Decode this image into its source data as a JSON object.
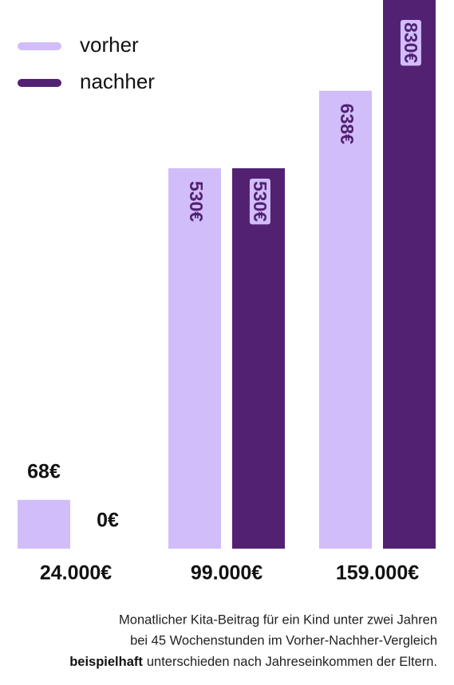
{
  "chart_data": {
    "type": "bar",
    "categories": [
      "24.000€",
      "99.000€",
      "159.000€"
    ],
    "series": [
      {
        "name": "vorher",
        "color": "#d1bdfa",
        "values": [
          68,
          530,
          638
        ],
        "value_labels": [
          "68€",
          "530€",
          "638€"
        ]
      },
      {
        "name": "nachher",
        "color": "#522172",
        "values": [
          0,
          530,
          830
        ],
        "value_labels": [
          "0€",
          "530€",
          "830€"
        ]
      }
    ],
    "caption": {
      "line1": "Monatlicher Kita-Beitrag für ein Kind unter zwei Jahren",
      "line2": "bei 45 Wochenstunden im Vorher-Nachher-Vergleich",
      "emphasis": "beispielhaft",
      "line3": "unterschieden nach Jahreseinkommen der Eltern."
    }
  }
}
